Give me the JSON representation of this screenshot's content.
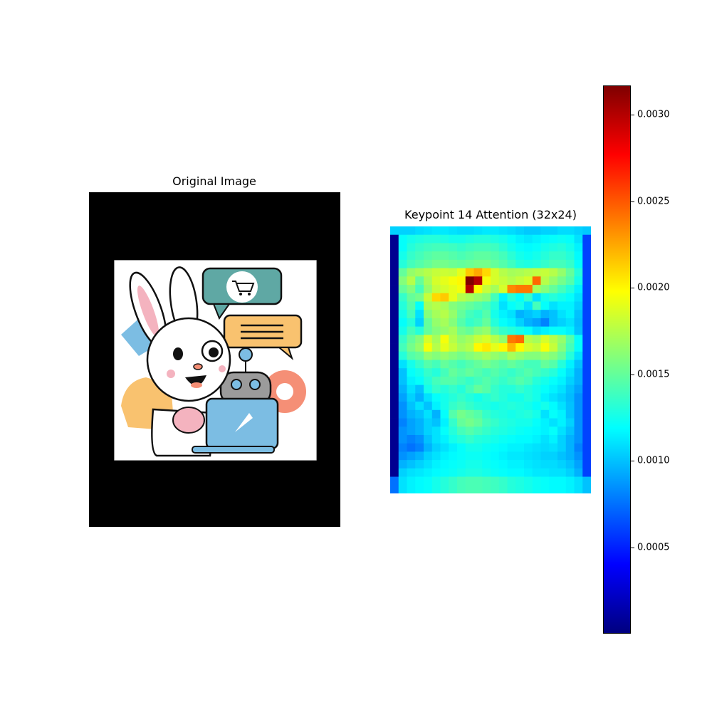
{
  "figure": {
    "left_panel": {
      "title": "Original Image",
      "image_subject": "cartoon rabbit with laptop, shopping-cart chat bubble, message bubble, location pin, robot"
    },
    "right_panel": {
      "title": "Keypoint 14 Attention (32x24)"
    },
    "colors": {
      "frame_background": "#000000",
      "image_background": "#ffffff",
      "teal_bubble": "#5fa8a4",
      "orange_bubble": "#f7c06a",
      "laptop_blue": "#7cbde3",
      "pin_coral": "#f58f76",
      "ear_pink": "#f4b3bf"
    }
  },
  "chart_data": {
    "type": "heatmap",
    "title": "Keypoint 14 Attention (32x24)",
    "rows": 32,
    "cols": 24,
    "colormap": "jet",
    "vmin": 0.0,
    "vmax": 0.00317,
    "colorbar": {
      "ticks": [
        0.0005,
        0.001,
        0.0015,
        0.002,
        0.0025,
        0.003
      ],
      "tick_labels": [
        "0.0005",
        "0.0010",
        "0.0015",
        "0.0020",
        "0.0025",
        "0.0030"
      ]
    },
    "values": [
      [
        0.00105,
        0.00105,
        0.00105,
        0.00108,
        0.0011,
        0.00112,
        0.00112,
        0.0011,
        0.00108,
        0.00108,
        0.0011,
        0.00112,
        0.00112,
        0.0011,
        0.00108,
        0.00105,
        0.00102,
        0.00102,
        0.00105,
        0.00105,
        0.00108,
        0.00108,
        0.00105,
        0.00102
      ],
      [
        5e-05,
        0.0012,
        0.00125,
        0.00128,
        0.0013,
        0.0013,
        0.00128,
        0.00125,
        0.00125,
        0.00128,
        0.0013,
        0.0013,
        0.00128,
        0.00125,
        0.0012,
        0.00115,
        0.00112,
        0.00115,
        0.00118,
        0.0012,
        0.00122,
        0.0012,
        0.0011,
        0.0006
      ],
      [
        5e-05,
        0.0012,
        0.0013,
        0.00135,
        0.00138,
        0.0014,
        0.0014,
        0.00138,
        0.00135,
        0.00138,
        0.0014,
        0.0014,
        0.00138,
        0.00132,
        0.00125,
        0.0012,
        0.00118,
        0.0012,
        0.00125,
        0.00128,
        0.0013,
        0.00125,
        0.00115,
        0.0006
      ],
      [
        5e-05,
        0.00125,
        0.00135,
        0.0014,
        0.00145,
        0.00148,
        0.00148,
        0.00145,
        0.00142,
        0.00145,
        0.00148,
        0.00148,
        0.00145,
        0.0014,
        0.00132,
        0.00125,
        0.00122,
        0.00125,
        0.0013,
        0.00135,
        0.00135,
        0.0013,
        0.00118,
        0.0006
      ],
      [
        5e-05,
        0.0013,
        0.0014,
        0.00145,
        0.0015,
        0.00155,
        0.00155,
        0.00152,
        0.0015,
        0.00152,
        0.00155,
        0.00155,
        0.0015,
        0.00145,
        0.00138,
        0.0013,
        0.00128,
        0.0013,
        0.00135,
        0.0014,
        0.0014,
        0.00135,
        0.0012,
        0.0006
      ],
      [
        5e-05,
        0.0015,
        0.00165,
        0.0017,
        0.00175,
        0.0018,
        0.00182,
        0.0018,
        0.0019,
        0.00215,
        0.00225,
        0.0021,
        0.00185,
        0.00175,
        0.0017,
        0.00172,
        0.00175,
        0.00178,
        0.0018,
        0.00175,
        0.00165,
        0.0015,
        0.0013,
        0.0006
      ],
      [
        5e-05,
        0.0016,
        0.00175,
        0.0015,
        0.0017,
        0.00185,
        0.0019,
        0.00195,
        0.002,
        0.00317,
        0.003,
        0.00195,
        0.00185,
        0.0018,
        0.00175,
        0.0018,
        0.00185,
        0.00245,
        0.00175,
        0.00165,
        0.00155,
        0.00145,
        0.00125,
        0.0006
      ],
      [
        5e-05,
        0.0015,
        0.0016,
        0.0014,
        0.00165,
        0.0018,
        0.00185,
        0.0019,
        0.00195,
        0.003,
        0.002,
        0.0018,
        0.0017,
        0.00185,
        0.00235,
        0.0024,
        0.0024,
        0.0017,
        0.0016,
        0.0015,
        0.0014,
        0.0013,
        0.00115,
        0.0006
      ],
      [
        5e-05,
        0.00135,
        0.0015,
        0.00155,
        0.0018,
        0.0021,
        0.00215,
        0.0019,
        0.00175,
        0.0017,
        0.00165,
        0.0016,
        0.0014,
        0.00115,
        0.0013,
        0.0012,
        0.00135,
        0.0011,
        0.00125,
        0.0013,
        0.00125,
        0.0012,
        0.0011,
        0.0006
      ],
      [
        5e-05,
        0.0013,
        0.00145,
        0.0012,
        0.0017,
        0.00175,
        0.0017,
        0.0016,
        0.00155,
        0.0015,
        0.00145,
        0.0014,
        0.0013,
        0.0011,
        0.0012,
        0.00125,
        0.0011,
        0.0014,
        0.0012,
        0.0011,
        0.00115,
        0.00115,
        0.00105,
        0.0006
      ],
      [
        5e-05,
        0.00125,
        0.0014,
        0.0011,
        0.0016,
        0.0017,
        0.00175,
        0.00165,
        0.0015,
        0.0014,
        0.00135,
        0.00145,
        0.00125,
        0.00115,
        0.0011,
        0.00095,
        0.001,
        0.00105,
        0.00095,
        0.001,
        0.0011,
        0.00115,
        0.001,
        0.0006
      ],
      [
        5e-05,
        0.0012,
        0.0013,
        0.00105,
        0.0015,
        0.00165,
        0.0017,
        0.0016,
        0.00145,
        0.00135,
        0.0014,
        0.0015,
        0.0013,
        0.0012,
        0.00115,
        0.00105,
        0.00095,
        0.0009,
        0.0008,
        0.001,
        0.00105,
        0.0011,
        0.00098,
        0.0006
      ],
      [
        5e-05,
        0.00125,
        0.0014,
        0.0013,
        0.0015,
        0.0016,
        0.00165,
        0.0017,
        0.00155,
        0.0015,
        0.0016,
        0.00165,
        0.00145,
        0.00135,
        0.0013,
        0.00125,
        0.0012,
        0.0011,
        0.00115,
        0.0012,
        0.0012,
        0.00115,
        0.001,
        0.0006
      ],
      [
        5e-05,
        0.00135,
        0.0015,
        0.0016,
        0.00185,
        0.0017,
        0.00195,
        0.00175,
        0.00165,
        0.0017,
        0.0018,
        0.00185,
        0.00175,
        0.00165,
        0.0024,
        0.00245,
        0.00175,
        0.0017,
        0.00185,
        0.00175,
        0.00165,
        0.00145,
        0.0012,
        0.0006
      ],
      [
        5e-05,
        0.0014,
        0.00155,
        0.00165,
        0.00195,
        0.00175,
        0.0019,
        0.0018,
        0.0017,
        0.00175,
        0.002,
        0.00205,
        0.0019,
        0.002,
        0.0022,
        0.002,
        0.00185,
        0.0018,
        0.00195,
        0.0018,
        0.0016,
        0.0014,
        0.0012,
        0.0006
      ],
      [
        5e-05,
        0.0013,
        0.00145,
        0.0015,
        0.00165,
        0.0016,
        0.00165,
        0.0016,
        0.00155,
        0.0016,
        0.00165,
        0.0017,
        0.00165,
        0.0016,
        0.0017,
        0.00165,
        0.0016,
        0.0016,
        0.00165,
        0.0016,
        0.0015,
        0.0013,
        0.0011,
        0.0006
      ],
      [
        5e-05,
        0.0011,
        0.00125,
        0.00135,
        0.00145,
        0.0014,
        0.0015,
        0.00145,
        0.0014,
        0.00145,
        0.0015,
        0.00155,
        0.0015,
        0.00145,
        0.0015,
        0.00145,
        0.0014,
        0.0014,
        0.0015,
        0.00145,
        0.0013,
        0.00115,
        0.001,
        0.0006
      ],
      [
        5e-05,
        0.001,
        0.0012,
        0.00125,
        0.00135,
        0.0013,
        0.0014,
        0.0015,
        0.00145,
        0.0015,
        0.00145,
        0.0014,
        0.00145,
        0.0014,
        0.00135,
        0.0014,
        0.00145,
        0.0014,
        0.00135,
        0.0013,
        0.0012,
        0.0011,
        0.00095,
        0.0006
      ],
      [
        5e-05,
        0.001,
        0.00115,
        0.0012,
        0.0013,
        0.0014,
        0.00145,
        0.00145,
        0.0014,
        0.00135,
        0.0014,
        0.00145,
        0.0014,
        0.00135,
        0.0014,
        0.00145,
        0.0014,
        0.0013,
        0.00125,
        0.0012,
        0.00115,
        0.00105,
        0.00095,
        0.0006
      ],
      [
        5e-05,
        0.00095,
        0.0011,
        0.001,
        0.00125,
        0.00135,
        0.0013,
        0.00135,
        0.0013,
        0.0014,
        0.0015,
        0.00145,
        0.00135,
        0.0013,
        0.0013,
        0.00135,
        0.0013,
        0.00125,
        0.0012,
        0.00115,
        0.0011,
        0.001,
        0.0009,
        0.0006
      ],
      [
        5e-05,
        0.0009,
        0.00105,
        0.00095,
        0.0011,
        0.0012,
        0.00125,
        0.0013,
        0.00135,
        0.0013,
        0.00125,
        0.0013,
        0.00135,
        0.0013,
        0.00125,
        0.00125,
        0.0013,
        0.00125,
        0.00115,
        0.0011,
        0.00105,
        0.00098,
        0.00085,
        0.0006
      ],
      [
        5e-05,
        0.00085,
        0.001,
        0.0011,
        0.001,
        0.00115,
        0.00125,
        0.00135,
        0.0014,
        0.00135,
        0.0013,
        0.00128,
        0.00125,
        0.00128,
        0.0013,
        0.00128,
        0.00125,
        0.0012,
        0.00125,
        0.00118,
        0.0011,
        0.001,
        0.00085,
        0.0006
      ],
      [
        5e-05,
        0.00085,
        0.00095,
        0.001,
        0.0011,
        0.00095,
        0.0012,
        0.00145,
        0.00155,
        0.0015,
        0.00145,
        0.00135,
        0.0013,
        0.00128,
        0.00125,
        0.00128,
        0.0013,
        0.00125,
        0.0011,
        0.0012,
        0.00115,
        0.001,
        0.00085,
        0.0006
      ],
      [
        5e-05,
        0.0008,
        0.0009,
        0.00095,
        0.00105,
        0.001,
        0.00115,
        0.00135,
        0.0015,
        0.00155,
        0.0015,
        0.0014,
        0.00135,
        0.0013,
        0.00128,
        0.00125,
        0.00125,
        0.0012,
        0.00115,
        0.0011,
        0.00115,
        0.00105,
        0.00085,
        0.0006
      ],
      [
        5e-05,
        0.00085,
        0.0009,
        0.00095,
        0.00105,
        0.0011,
        0.0012,
        0.0013,
        0.0014,
        0.00145,
        0.0014,
        0.00135,
        0.0013,
        0.00128,
        0.00125,
        0.00122,
        0.0012,
        0.00118,
        0.00115,
        0.0012,
        0.0011,
        0.001,
        0.00085,
        0.0006
      ],
      [
        5e-05,
        0.00085,
        0.0008,
        0.00085,
        0.001,
        0.0011,
        0.00115,
        0.00125,
        0.0013,
        0.00135,
        0.0013,
        0.00128,
        0.00125,
        0.00122,
        0.0012,
        0.00118,
        0.00118,
        0.00115,
        0.0011,
        0.00115,
        0.00105,
        0.00095,
        0.00085,
        0.0006
      ],
      [
        5e-05,
        0.0008,
        0.00075,
        0.0008,
        0.00095,
        0.00105,
        0.0011,
        0.00115,
        0.0012,
        0.00125,
        0.00125,
        0.00122,
        0.0012,
        0.00118,
        0.00115,
        0.00115,
        0.00112,
        0.0011,
        0.00108,
        0.0011,
        0.00105,
        0.00095,
        0.0008,
        0.0006
      ],
      [
        5e-05,
        0.00085,
        0.0009,
        0.00095,
        0.00105,
        0.0011,
        0.00115,
        0.00118,
        0.0012,
        0.00122,
        0.00122,
        0.0012,
        0.00118,
        0.00115,
        0.00112,
        0.00112,
        0.0011,
        0.00108,
        0.00105,
        0.00105,
        0.001,
        0.00095,
        0.00085,
        0.0006
      ],
      [
        5e-05,
        0.00095,
        0.001,
        0.00105,
        0.0011,
        0.00115,
        0.00118,
        0.0012,
        0.00122,
        0.00125,
        0.00125,
        0.00122,
        0.0012,
        0.00118,
        0.00115,
        0.00115,
        0.00112,
        0.0011,
        0.00108,
        0.00108,
        0.00105,
        0.001,
        0.0009,
        0.0006
      ],
      [
        5e-05,
        0.00105,
        0.0011,
        0.00112,
        0.00115,
        0.00118,
        0.0012,
        0.00122,
        0.00125,
        0.00128,
        0.00128,
        0.00125,
        0.00122,
        0.0012,
        0.00118,
        0.00118,
        0.00115,
        0.00112,
        0.00112,
        0.0011,
        0.0011,
        0.00105,
        0.00095,
        0.0006
      ],
      [
        0.00075,
        0.0011,
        0.00115,
        0.00118,
        0.0012,
        0.00125,
        0.0013,
        0.00135,
        0.0014,
        0.00142,
        0.00142,
        0.0014,
        0.00138,
        0.00135,
        0.0013,
        0.00128,
        0.00125,
        0.00122,
        0.0012,
        0.00118,
        0.00118,
        0.00115,
        0.0011,
        0.001
      ],
      [
        0.00075,
        0.0011,
        0.00115,
        0.00118,
        0.0012,
        0.00125,
        0.0013,
        0.00135,
        0.0014,
        0.00142,
        0.00142,
        0.0014,
        0.00138,
        0.00135,
        0.0013,
        0.00128,
        0.00125,
        0.00122,
        0.0012,
        0.00118,
        0.00118,
        0.00115,
        0.0011,
        0.001
      ]
    ]
  }
}
